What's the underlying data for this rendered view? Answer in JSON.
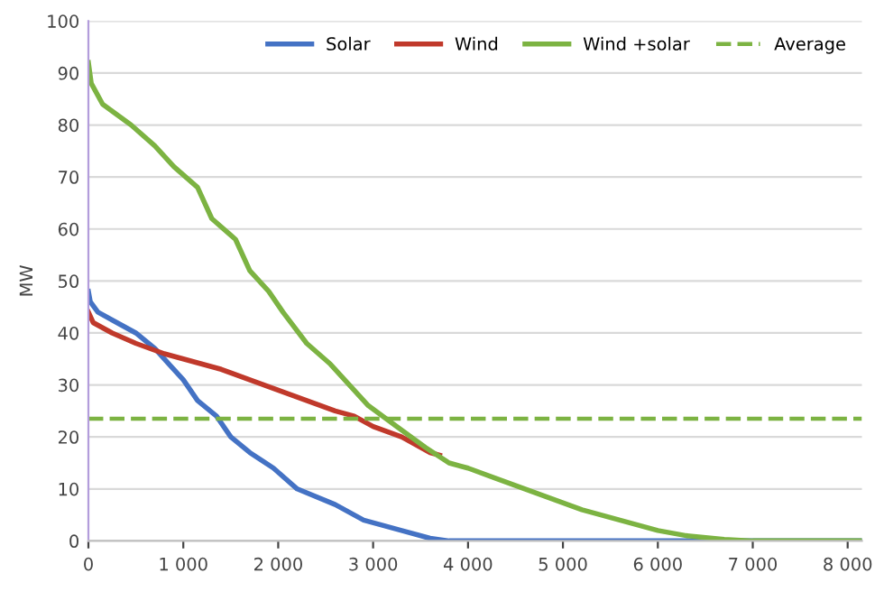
{
  "chart_data": {
    "type": "line",
    "ylabel": "MW",
    "xlim": [
      0,
      8150
    ],
    "ylim": [
      0,
      100
    ],
    "xticks": [
      0,
      {
        "value": 1000,
        "label": "1 000"
      },
      {
        "value": 2000,
        "label": "2 000"
      },
      {
        "value": 3000,
        "label": "3 000"
      },
      {
        "value": 4000,
        "label": "4 000"
      },
      {
        "value": 5000,
        "label": "5 000"
      },
      {
        "value": 6000,
        "label": "6 000"
      },
      {
        "value": 7000,
        "label": "7 000"
      },
      {
        "value": 8000,
        "label": "8 000"
      }
    ],
    "yticks": [
      0,
      10,
      20,
      30,
      40,
      50,
      60,
      70,
      80,
      90,
      100
    ],
    "grid": "y",
    "legend": "top right",
    "marker": "none",
    "line_style": "solid",
    "series": [
      {
        "name": "Solar",
        "color": "#4472c4",
        "x": [
          0,
          20,
          100,
          300,
          500,
          700,
          850,
          1000,
          1150,
          1350,
          1500,
          1700,
          1950,
          2200,
          2600,
          2900,
          3300,
          3600,
          3800,
          8150
        ],
        "values": [
          48,
          46,
          44,
          42,
          40,
          37,
          34,
          31,
          27,
          24,
          20,
          17,
          14,
          10,
          7,
          4,
          2,
          0.5,
          0,
          0
        ]
      },
      {
        "name": "Wind",
        "color": "#c0392b",
        "x": [
          0,
          50,
          250,
          500,
          800,
          1000,
          1400,
          1700,
          2000,
          2300,
          2600,
          2800,
          3000,
          3300,
          3600,
          3700
        ],
        "values": [
          44,
          42,
          40,
          38,
          36,
          35,
          33,
          31,
          29,
          27,
          25,
          24,
          22,
          20,
          17,
          16.5
        ]
      },
      {
        "name": "Wind +solar",
        "color": "#7cb342",
        "x": [
          0,
          30,
          150,
          450,
          700,
          900,
          1150,
          1300,
          1550,
          1700,
          1900,
          2050,
          2300,
          2550,
          2750,
          2950,
          3250,
          3550,
          3800,
          4000,
          4300,
          4600,
          4900,
          5200,
          5600,
          6000,
          6300,
          6700,
          7000,
          8150
        ],
        "values": [
          92,
          88,
          84,
          80,
          76,
          72,
          68,
          62,
          58,
          52,
          48,
          44,
          38,
          34,
          30,
          26,
          22,
          18,
          15,
          14,
          12,
          10,
          8,
          6,
          4,
          2,
          1,
          0.3,
          0,
          0
        ]
      },
      {
        "name": "Average",
        "color": "#7cb342",
        "type": "line",
        "line_style": "dashed",
        "x": [
          0,
          8150
        ],
        "values": [
          23.5,
          23.5
        ]
      }
    ]
  }
}
